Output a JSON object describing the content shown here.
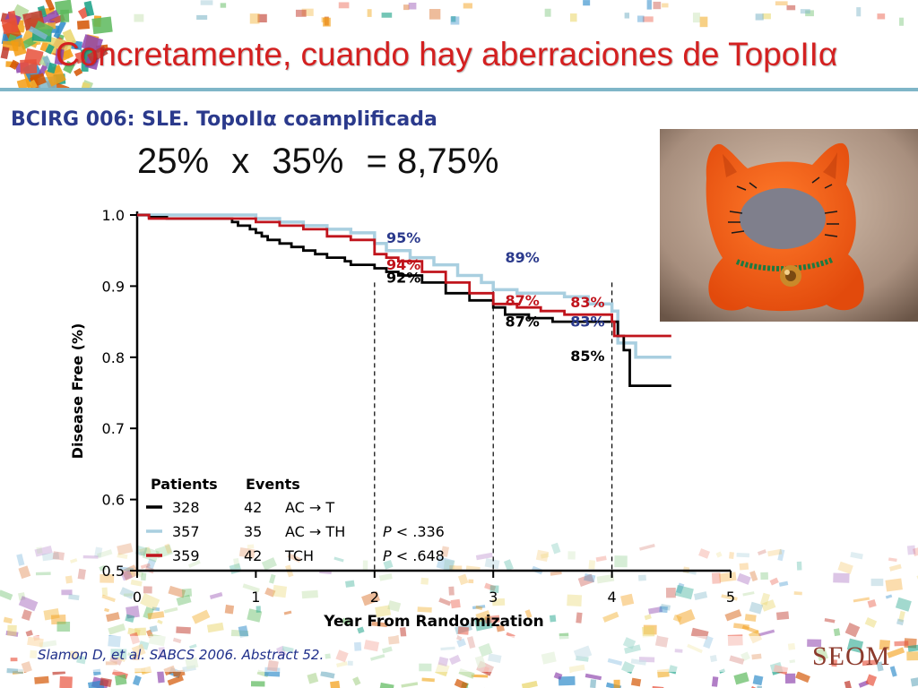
{
  "slide": {
    "title": "Concretamente, cuando hay aberraciones de TopoIIα",
    "subtitle": "BCIRG 006: SLE. TopoIIα coamplificada",
    "formula": {
      "a": "25%",
      "op": "x",
      "b": "35%",
      "eq": "= 8,75%"
    },
    "citation": "Slamon D, et al. SABCS 2006. Abstract 52.",
    "logo": "SEOM",
    "photo_icon": "orange-felt-cat-photo"
  },
  "chart_data": {
    "type": "line",
    "step": true,
    "xlabel": "Year From Randomization",
    "ylabel": "Disease Free (%)",
    "xlim": [
      0,
      5
    ],
    "ylim": [
      0.5,
      1.0
    ],
    "x_ticks": [
      "0",
      "1",
      "2",
      "3",
      "4",
      "5"
    ],
    "y_ticks": [
      "0.5",
      "0.6",
      "0.7",
      "0.8",
      "0.9",
      "1.0"
    ],
    "grid": false,
    "reference_lines_x": [
      2,
      3,
      4
    ],
    "legend": {
      "header_patients": "Patients",
      "header_events": "Events",
      "rows": [
        {
          "patients": "328",
          "events": "42",
          "name": "AC → T",
          "pvalue": ""
        },
        {
          "patients": "357",
          "events": "35",
          "name": "AC → TH",
          "pvalue": "P < .336"
        },
        {
          "patients": "359",
          "events": "42",
          "name": "TCH",
          "pvalue": "P < .648"
        }
      ]
    },
    "series": [
      {
        "name": "AC → T",
        "color": "#000000",
        "points": [
          [
            0,
            1.0
          ],
          [
            0.1,
            0.997
          ],
          [
            0.25,
            0.995
          ],
          [
            0.5,
            0.995
          ],
          [
            0.75,
            0.995
          ],
          [
            0.8,
            0.99
          ],
          [
            0.85,
            0.985
          ],
          [
            0.95,
            0.98
          ],
          [
            1.0,
            0.975
          ],
          [
            1.05,
            0.97
          ],
          [
            1.1,
            0.965
          ],
          [
            1.2,
            0.96
          ],
          [
            1.3,
            0.955
          ],
          [
            1.4,
            0.95
          ],
          [
            1.5,
            0.945
          ],
          [
            1.6,
            0.94
          ],
          [
            1.75,
            0.935
          ],
          [
            1.8,
            0.93
          ],
          [
            1.95,
            0.93
          ],
          [
            2.0,
            0.925
          ],
          [
            2.1,
            0.92
          ],
          [
            2.2,
            0.915
          ],
          [
            2.4,
            0.905
          ],
          [
            2.6,
            0.89
          ],
          [
            2.8,
            0.88
          ],
          [
            3.0,
            0.87
          ],
          [
            3.1,
            0.86
          ],
          [
            3.2,
            0.86
          ],
          [
            3.3,
            0.855
          ],
          [
            3.5,
            0.85
          ],
          [
            3.6,
            0.85
          ],
          [
            4.0,
            0.85
          ],
          [
            4.05,
            0.83
          ],
          [
            4.1,
            0.81
          ],
          [
            4.15,
            0.76
          ],
          [
            4.5,
            0.76
          ]
        ]
      },
      {
        "name": "AC → TH",
        "color": "#a9cfe0",
        "points": [
          [
            0,
            1.0
          ],
          [
            0.5,
            1.0
          ],
          [
            0.75,
            1.0
          ],
          [
            1.0,
            0.995
          ],
          [
            1.2,
            0.99
          ],
          [
            1.4,
            0.985
          ],
          [
            1.6,
            0.98
          ],
          [
            1.8,
            0.975
          ],
          [
            2.0,
            0.96
          ],
          [
            2.1,
            0.95
          ],
          [
            2.3,
            0.94
          ],
          [
            2.5,
            0.93
          ],
          [
            2.7,
            0.915
          ],
          [
            2.9,
            0.905
          ],
          [
            3.0,
            0.895
          ],
          [
            3.2,
            0.89
          ],
          [
            3.4,
            0.89
          ],
          [
            3.6,
            0.885
          ],
          [
            3.8,
            0.875
          ],
          [
            4.0,
            0.865
          ],
          [
            4.05,
            0.82
          ],
          [
            4.2,
            0.8
          ],
          [
            4.5,
            0.8
          ]
        ]
      },
      {
        "name": "TCH",
        "color": "#c0141c",
        "points": [
          [
            0,
            1.0
          ],
          [
            0.1,
            0.995
          ],
          [
            0.5,
            0.995
          ],
          [
            0.75,
            0.995
          ],
          [
            1.0,
            0.99
          ],
          [
            1.2,
            0.985
          ],
          [
            1.4,
            0.98
          ],
          [
            1.6,
            0.97
          ],
          [
            1.8,
            0.965
          ],
          [
            2.0,
            0.945
          ],
          [
            2.1,
            0.94
          ],
          [
            2.2,
            0.935
          ],
          [
            2.4,
            0.92
          ],
          [
            2.6,
            0.905
          ],
          [
            2.8,
            0.89
          ],
          [
            3.0,
            0.875
          ],
          [
            3.2,
            0.87
          ],
          [
            3.4,
            0.865
          ],
          [
            3.6,
            0.86
          ],
          [
            4.0,
            0.85
          ],
          [
            4.02,
            0.83
          ],
          [
            4.5,
            0.83
          ]
        ]
      }
    ],
    "annotations": [
      {
        "text": "95%",
        "x": 2.1,
        "y": 0.961,
        "color": "#2b3a8c"
      },
      {
        "text": "94%",
        "x": 2.1,
        "y": 0.923,
        "color": "#c0141c"
      },
      {
        "text": "92%",
        "x": 2.1,
        "y": 0.905,
        "color": "#000000"
      },
      {
        "text": "89%",
        "x": 3.1,
        "y": 0.933,
        "color": "#2b3a8c"
      },
      {
        "text": "87%",
        "x": 3.1,
        "y": 0.873,
        "color": "#c0141c"
      },
      {
        "text": "87%",
        "x": 3.1,
        "y": 0.843,
        "color": "#000000"
      },
      {
        "text": "83%",
        "x": 3.65,
        "y": 0.87,
        "color": "#c0141c"
      },
      {
        "text": "83%",
        "x": 3.65,
        "y": 0.843,
        "color": "#2b3a8c"
      },
      {
        "text": "85%",
        "x": 3.65,
        "y": 0.795,
        "color": "#000000"
      }
    ]
  }
}
